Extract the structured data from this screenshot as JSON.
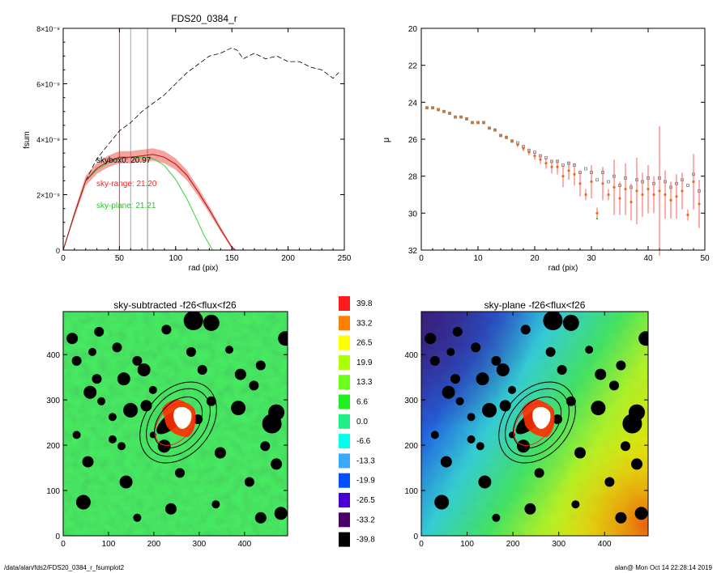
{
  "footer": {
    "left": "/data/alan/fds2/FDS20_0384_r_fsumplot2",
    "right": "alan@  Mon Oct 14 22:28:14 2019"
  },
  "colors": {
    "curve_black": "#000000",
    "curve_red": "#e8322a",
    "curve_green": "#34d434",
    "vline_red": "#ff3030",
    "vline_grey1": "#9aa8c8",
    "vline_grey2": "#8a8a8a",
    "point_grey": "#808080",
    "point_orange": "#e07020",
    "point_green": "#30c030"
  },
  "chart_data": [
    {
      "id": "fsum",
      "type": "line",
      "title": "FDS20_0384_r",
      "xlabel": "rad (pix)",
      "ylabel": "fsum",
      "xlim": [
        0,
        250
      ],
      "ylim": [
        0,
        8e-09
      ],
      "xticks": [
        "0",
        "50",
        "100",
        "150",
        "200",
        "250"
      ],
      "yticks": [
        "0",
        "2×10⁻⁹",
        "4×10⁻⁹",
        "6×10⁻⁹",
        "8×10⁻⁹"
      ],
      "vlines": [
        50,
        60,
        75
      ],
      "annotations": [
        {
          "text": "skybox0: 20.97",
          "color": "black"
        },
        {
          "text": "sky-range: 21.20",
          "color": "red"
        },
        {
          "text": "sky-plane: 21.21",
          "color": "green"
        }
      ],
      "series": [
        {
          "style": "dashed black",
          "x": [
            0,
            10,
            20,
            30,
            40,
            50,
            60,
            70,
            80,
            90,
            100,
            110,
            120,
            130,
            140,
            150,
            155,
            160,
            170,
            180,
            190,
            200,
            210,
            220,
            230,
            240,
            245
          ],
          "y": [
            0,
            1.3e-09,
            2.5e-09,
            3.3e-09,
            3.8e-09,
            4.3e-09,
            4.6e-09,
            5e-09,
            5.3e-09,
            5.6e-09,
            6e-09,
            6.4e-09,
            6.7e-09,
            7e-09,
            7.1e-09,
            7.3e-09,
            7.2e-09,
            6.9e-09,
            7.1e-09,
            6.9e-09,
            7e-09,
            6.8e-09,
            6.8e-09,
            6.6e-09,
            6.5e-09,
            6.2e-09,
            6.4e-09
          ]
        },
        {
          "style": "red with error band",
          "x": [
            0,
            10,
            20,
            30,
            40,
            50,
            60,
            70,
            80,
            90,
            100,
            110,
            120,
            130,
            140,
            150,
            153
          ],
          "y": [
            0,
            1.3e-09,
            2.5e-09,
            2.95e-09,
            3.2e-09,
            3.35e-09,
            3.35e-09,
            3.4e-09,
            3.45e-09,
            3.35e-09,
            3.1e-09,
            2.7e-09,
            2.1e-09,
            1.45e-09,
            7.5e-10,
            1e-10,
            0
          ]
        },
        {
          "style": "green",
          "x": [
            0,
            10,
            20,
            30,
            40,
            50,
            60,
            70,
            80,
            90,
            100,
            110,
            120,
            125,
            130,
            133
          ],
          "y": [
            0,
            1.3e-09,
            2.5e-09,
            2.9e-09,
            3.15e-09,
            3.3e-09,
            3.35e-09,
            3.35e-09,
            3.3e-09,
            3.05e-09,
            2.55e-09,
            1.85e-09,
            1e-09,
            5.5e-10,
            2e-10,
            0
          ]
        }
      ]
    },
    {
      "id": "mu",
      "type": "scatter",
      "xlabel": "rad (pix)",
      "ylabel": "μ",
      "xlim": [
        0,
        50
      ],
      "ylim": [
        32,
        20
      ],
      "xticks": [
        "0",
        "10",
        "20",
        "30",
        "40",
        "50"
      ],
      "yticks": [
        "20",
        "22",
        "24",
        "26",
        "28",
        "30",
        "32"
      ],
      "series": [
        {
          "style": "grey squares",
          "x": [
            1,
            2,
            3,
            4,
            5,
            6,
            7,
            8,
            9,
            10,
            11,
            12,
            13,
            14,
            15,
            16,
            17,
            18,
            19,
            20,
            21,
            22,
            23,
            24,
            25,
            26,
            27,
            28,
            29,
            30,
            31,
            32,
            33,
            34,
            35,
            36,
            37,
            38,
            39,
            40,
            41,
            42,
            43,
            44,
            45,
            46,
            47,
            48,
            49
          ],
          "y": [
            24.3,
            24.3,
            24.4,
            24.5,
            24.6,
            24.8,
            24.8,
            24.9,
            25.1,
            25.1,
            25.1,
            25.4,
            25.5,
            25.8,
            25.9,
            26.1,
            26.2,
            26.4,
            26.6,
            26.7,
            26.9,
            27.0,
            27.2,
            27.2,
            27.4,
            27.3,
            27.4,
            27.8,
            27.6,
            27.8,
            28.2,
            27.8,
            28.3,
            28.0,
            28.5,
            28.1,
            28.6,
            28.2,
            28.3,
            28.1,
            28.4,
            28.1,
            28.3,
            28.6,
            28.4,
            28.2,
            28.5,
            27.9,
            28.8
          ]
        },
        {
          "style": "orange points with red error bars",
          "x": [
            1,
            2,
            3,
            4,
            5,
            6,
            7,
            8,
            9,
            10,
            11,
            12,
            13,
            14,
            15,
            16,
            17,
            18,
            19,
            20,
            21,
            22,
            23,
            24,
            25,
            26,
            27,
            28,
            29,
            30,
            31,
            32,
            33,
            34,
            35,
            36,
            37,
            38,
            39,
            40,
            41,
            42,
            43,
            44,
            45,
            46,
            47,
            48,
            49
          ],
          "y": [
            24.3,
            24.3,
            24.4,
            24.5,
            24.6,
            24.8,
            24.8,
            24.9,
            25.1,
            25.1,
            25.1,
            25.4,
            25.5,
            25.8,
            25.9,
            26.1,
            26.3,
            26.5,
            26.7,
            26.9,
            27.1,
            27.3,
            27.5,
            27.5,
            28.0,
            27.7,
            27.9,
            28.4,
            29.0,
            28.3,
            30.0,
            28.4,
            29.0,
            28.6,
            29.2,
            28.7,
            29.4,
            28.8,
            29.0,
            28.7,
            29.0,
            28.8,
            29.0,
            29.3,
            29.1,
            28.8,
            30.1,
            28.3,
            29.5
          ],
          "err": [
            0.05,
            0.05,
            0.05,
            0.05,
            0.05,
            0.05,
            0.05,
            0.05,
            0.05,
            0.05,
            0.05,
            0.06,
            0.07,
            0.08,
            0.1,
            0.1,
            0.12,
            0.15,
            0.18,
            0.2,
            0.25,
            0.3,
            0.35,
            0.4,
            0.6,
            0.5,
            0.6,
            0.7,
            0.3,
            0.9,
            0.3,
            0.9,
            0.3,
            1.5,
            0.9,
            1.4,
            1.0,
            1.8,
            1.2,
            1.3,
            1.0,
            3.5,
            1.3,
            1.0,
            1.2,
            1.0,
            0.3,
            1.5,
            1.3
          ]
        },
        {
          "style": "green small",
          "x": [
            31
          ],
          "y": [
            30.3
          ]
        }
      ]
    },
    {
      "id": "img-sub",
      "type": "heatmap",
      "title": "sky-subtracted -f26<flux<f26",
      "xlim": [
        0,
        495
      ],
      "ylim": [
        0,
        495
      ],
      "xticks": [
        "0",
        "100",
        "200",
        "300",
        "400"
      ],
      "yticks": [
        "0",
        "100",
        "200",
        "300",
        "400"
      ]
    },
    {
      "id": "colorbar",
      "type": "table",
      "levels": [
        "39.8",
        "33.2",
        "26.5",
        "19.9",
        "13.3",
        "6.6",
        "0.0",
        "-6.6",
        "-13.3",
        "-19.9",
        "-26.5",
        "-33.2",
        "-39.8"
      ],
      "level_colors": [
        "#ff1a1a",
        "#ff8000",
        "#ffff00",
        "#aaff00",
        "#6cff1a",
        "#22ee22",
        "#22ee88",
        "#00ffee",
        "#3aa8ff",
        "#0050ff",
        "#4a00d0",
        "#4a0066",
        "#000000"
      ]
    },
    {
      "id": "img-plane",
      "type": "heatmap",
      "title": "sky-plane -f26<flux<f26",
      "xlim": [
        0,
        495
      ],
      "ylim": [
        0,
        495
      ],
      "xticks": [
        "0",
        "100",
        "200",
        "300",
        "400"
      ],
      "yticks": [
        "0",
        "100",
        "200",
        "300",
        "400"
      ]
    }
  ]
}
